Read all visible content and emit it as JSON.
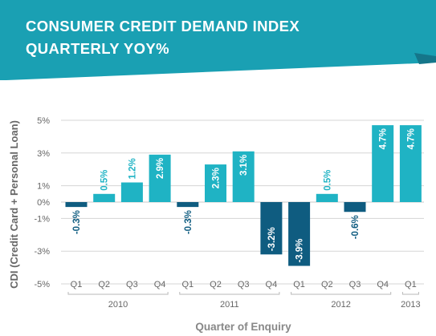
{
  "colors": {
    "banner": "#1aa0b3",
    "banner_fold": "#15768a",
    "positive": "#1fb3c4",
    "negative": "#0f5c80",
    "axis_text": "#666666",
    "xlabel_text": "#888888",
    "grid": "#d5d5d5"
  },
  "header": {
    "title_line1": "CONSUMER CREDIT DEMAND INDEX",
    "title_line2": "QUARTERLY YOY%"
  },
  "chart_data": {
    "type": "bar",
    "title": "CONSUMER CREDIT DEMAND INDEX QUARTERLY YOY%",
    "ylabel": "CDI (Credit Card + Personal Loan)",
    "xlabel": "Quarter of Enquiry",
    "ylim": [
      -5,
      5
    ],
    "yticks": [
      {
        "value": 5,
        "label": "5%"
      },
      {
        "value": 3,
        "label": "3%"
      },
      {
        "value": 1,
        "label": "1%"
      },
      {
        "value": 0,
        "label": "0%"
      },
      {
        "value": -1,
        "label": "-1%"
      },
      {
        "value": -3,
        "label": "-3%"
      },
      {
        "value": -5,
        "label": "-5%"
      }
    ],
    "grid": true,
    "categories": [
      "Q1",
      "Q2",
      "Q3",
      "Q4",
      "Q1",
      "Q2",
      "Q3",
      "Q4",
      "Q1",
      "Q2",
      "Q3",
      "Q4",
      "Q1"
    ],
    "values": [
      -0.3,
      0.5,
      1.2,
      2.9,
      -0.3,
      2.3,
      3.1,
      -3.2,
      -3.9,
      0.5,
      -0.6,
      4.7,
      4.7
    ],
    "value_labels": [
      "-0.3%",
      "0.5%",
      "1.2%",
      "2.9%",
      "-0.3%",
      "2.3%",
      "3.1%",
      "-3.2%",
      "-3.9%",
      "0.5%",
      "-0.6%",
      "4.7%",
      "4.7%"
    ],
    "groups": [
      {
        "label": "2010",
        "start": 0,
        "end": 3
      },
      {
        "label": "2011",
        "start": 4,
        "end": 7
      },
      {
        "label": "2012",
        "start": 8,
        "end": 11
      },
      {
        "label": "2013",
        "start": 12,
        "end": 12
      }
    ]
  }
}
